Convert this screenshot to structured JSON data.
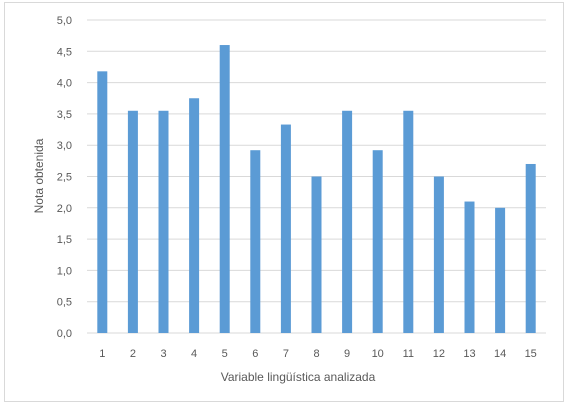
{
  "chart_data": {
    "type": "bar",
    "categories": [
      "1",
      "2",
      "3",
      "4",
      "5",
      "6",
      "7",
      "8",
      "9",
      "10",
      "11",
      "12",
      "13",
      "14",
      "15"
    ],
    "values": [
      4.18,
      3.55,
      3.55,
      3.75,
      4.6,
      2.92,
      3.33,
      2.5,
      3.55,
      2.92,
      3.55,
      2.5,
      2.1,
      2.0,
      2.7
    ],
    "title": "",
    "xlabel": "Variable lingüística analizada",
    "ylabel": "Nota obtenida",
    "ylim": [
      0,
      5
    ],
    "yticks": [
      "0,0",
      "0,5",
      "1,0",
      "1,5",
      "2,0",
      "2,5",
      "3,0",
      "3,5",
      "4,0",
      "4,5",
      "5,0"
    ],
    "grid": true,
    "legend": "none",
    "bar_color": "#5b9bd5",
    "grid_color": "#d9d9d9"
  }
}
